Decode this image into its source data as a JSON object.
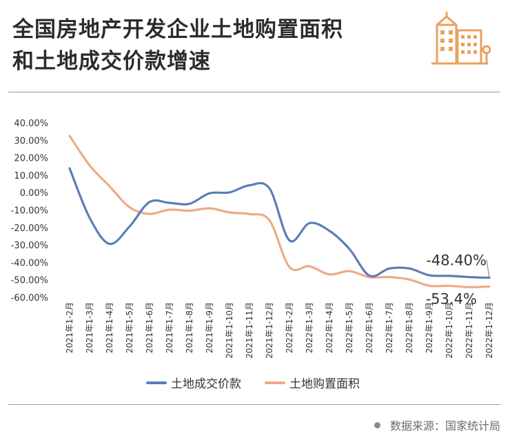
{
  "header": {
    "title_line1": "全国房地产开发企业土地购置面积",
    "title_line2": "和土地成交价款增速",
    "logo_icon": "building-icon",
    "accent": "#e9a15c"
  },
  "chart_data": {
    "type": "line",
    "title": "全国房地产开发企业土地购置面积和土地成交价款增速",
    "xlabel": "",
    "ylabel": "",
    "categories": [
      "2021年1-2月",
      "2021年1-3月",
      "2021年1-4月",
      "2021年1-5月",
      "2021年1-6月",
      "2021年1-7月",
      "2021年1-8月",
      "2021年1-9月",
      "2021年1-10月",
      "2021年1-11月",
      "2021年1-12月",
      "2022年1-2月",
      "2022年1-3月",
      "2022年1-4月",
      "2022年1-5月",
      "2022年1-6月",
      "2022年1-7月",
      "2022年1-8月",
      "2022年1-9月",
      "2022年1-10月",
      "2022年1-11月",
      "2022年1-12月"
    ],
    "y_ticks": [
      "40.00%",
      "30.00%",
      "20.00%",
      "10.00%",
      "0.00%",
      "-10.00%",
      "-20.00%",
      "-30.00%",
      "-40.00%",
      "-50.00%",
      "-60.00%"
    ],
    "ylim": [
      -60,
      40
    ],
    "grid": false,
    "legend_position": "bottom",
    "series": [
      {
        "name": "土地成交价款",
        "color": "#5b7db8",
        "values": [
          14.3,
          -14.0,
          -29.0,
          -19.0,
          -5.0,
          -5.5,
          -6.0,
          0.0,
          0.5,
          4.6,
          2.8,
          -27.0,
          -17.1,
          -21.5,
          -31.9,
          -47.2,
          -43.1,
          -43.1,
          -47.0,
          -47.3,
          -48.0,
          -48.4
        ]
      },
      {
        "name": "土地购置面积",
        "color": "#f0a987",
        "values": [
          32.9,
          16.0,
          4.0,
          -8.0,
          -11.8,
          -9.4,
          -10.0,
          -8.6,
          -11.0,
          -11.9,
          -15.5,
          -42.3,
          -41.8,
          -46.5,
          -44.6,
          -48.1,
          -48.0,
          -49.4,
          -53.0,
          -53.0,
          -53.8,
          -53.4
        ]
      }
    ],
    "annotations": [
      "-48.40%",
      "-53.4%"
    ]
  },
  "footer": {
    "source": "数据来源：国家统计局"
  }
}
